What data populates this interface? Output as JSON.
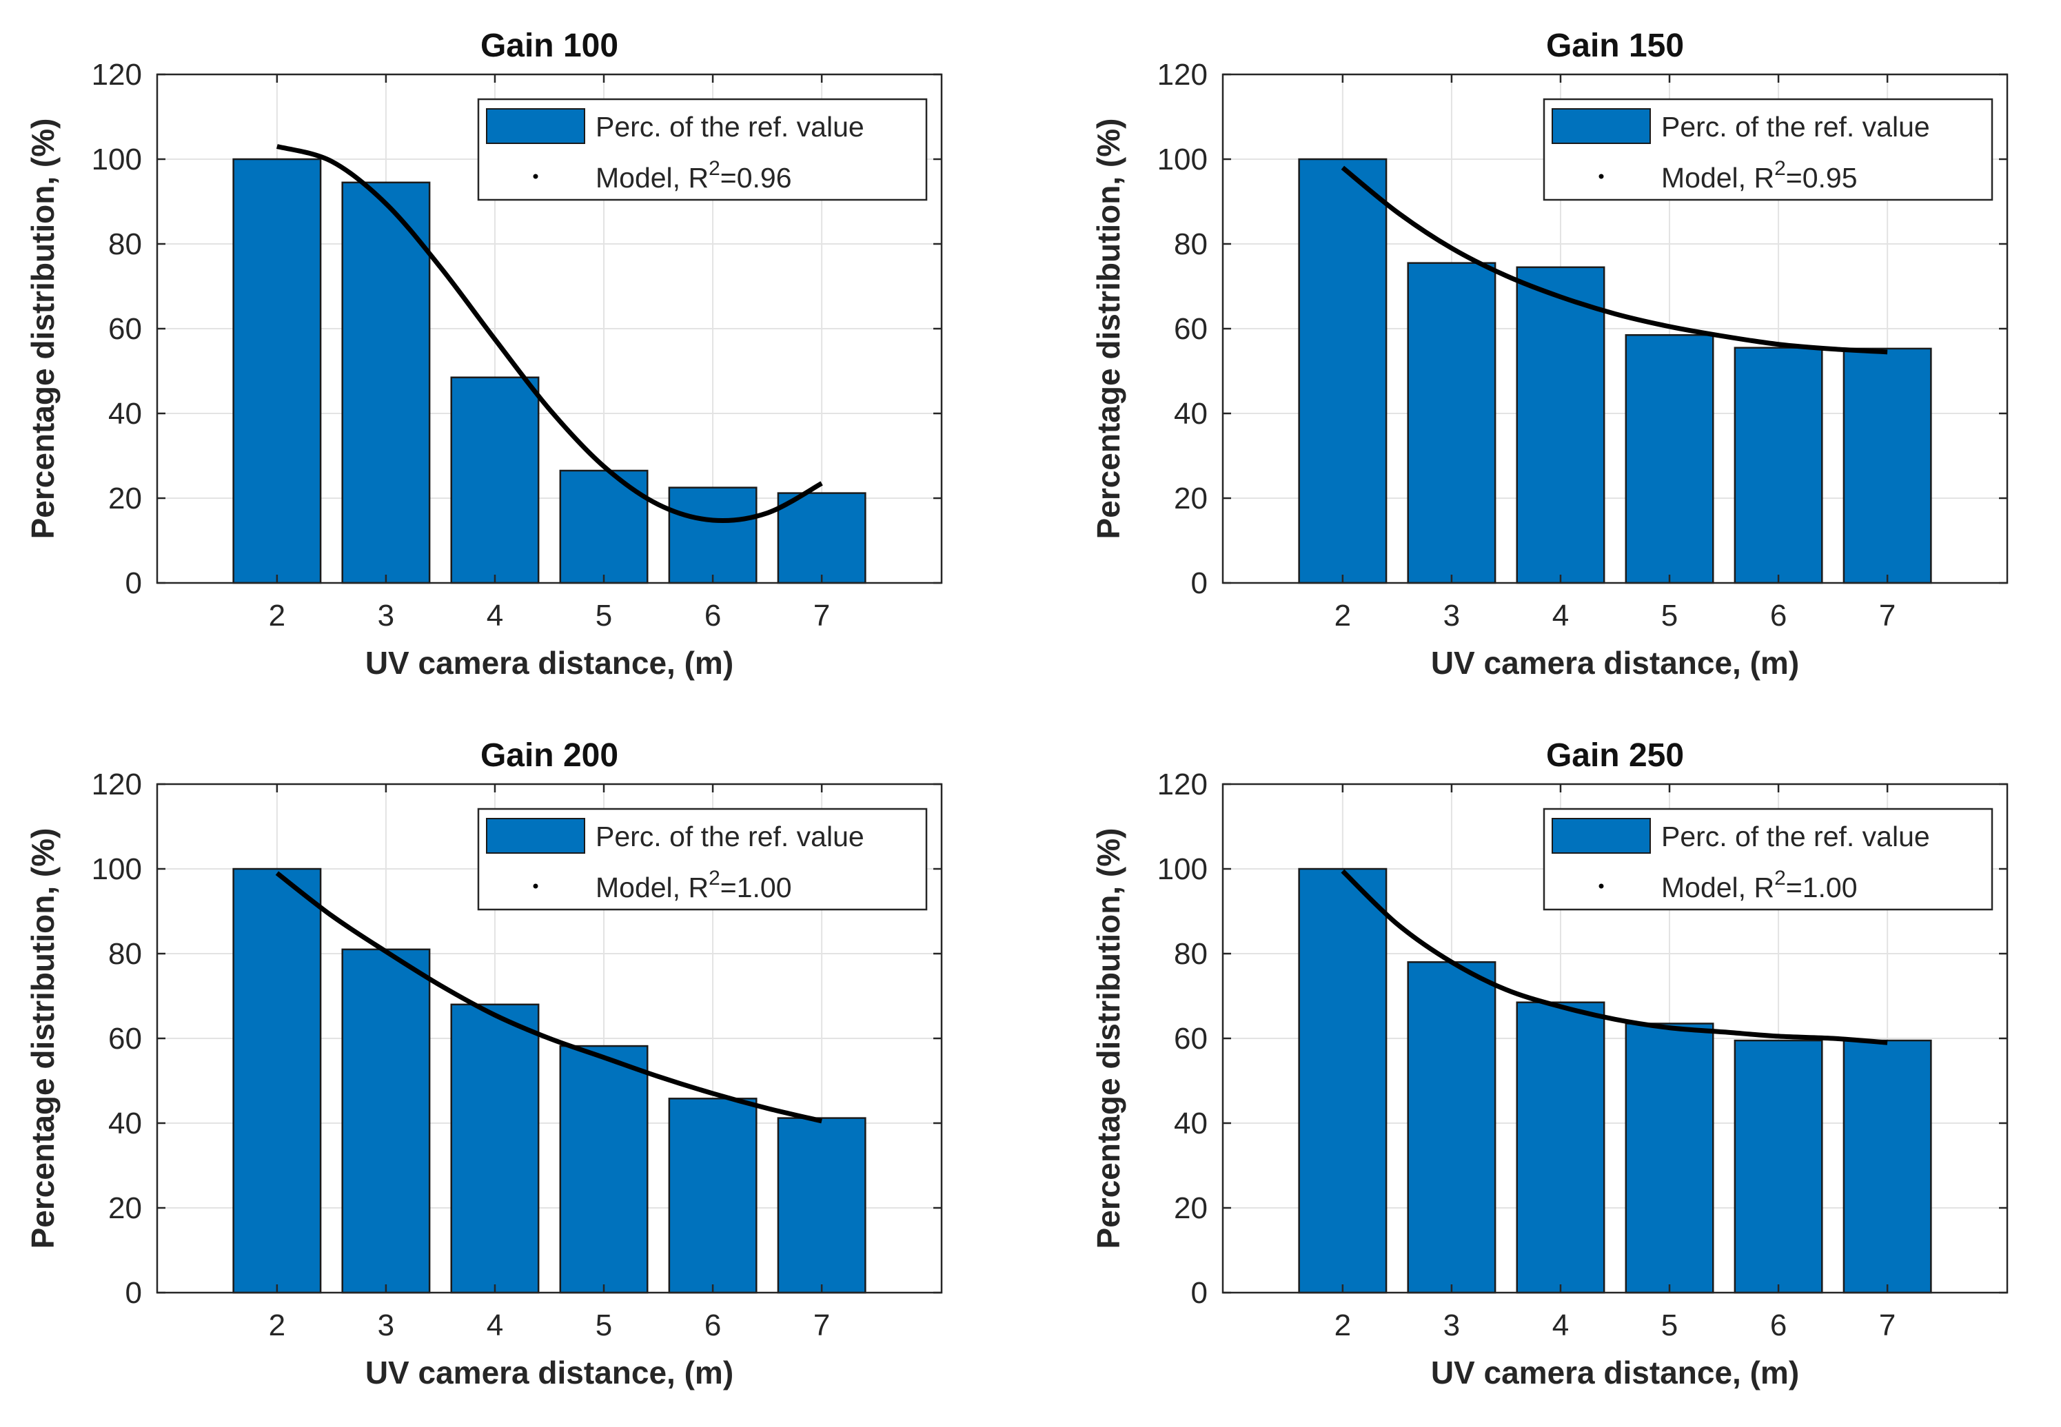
{
  "colors": {
    "bar_fill": "#0072BD",
    "model_line": "#000000",
    "grid": "#e3e3e3",
    "axis": "#262626"
  },
  "chart_data": [
    {
      "type": "bar",
      "title": "Gain 100",
      "xlabel": "UV camera distance, (m)",
      "ylabel": "Percentage distribution, (%)",
      "categories": [
        "2",
        "3",
        "4",
        "5",
        "6",
        "7"
      ],
      "x": [
        2,
        3,
        4,
        5,
        6,
        7
      ],
      "xlim": [
        0.9,
        8.1
      ],
      "ylim": [
        0,
        120
      ],
      "yticks": [
        "0",
        "20",
        "40",
        "60",
        "80",
        "100",
        "120"
      ],
      "grid": true,
      "legend": {
        "position": "top-right",
        "bar_label": "Perc. of the ref. value",
        "model_label": "Model, R",
        "model_sup": "2",
        "model_value": "=0.96"
      },
      "series": [
        {
          "name": "Perc. of the ref. value",
          "values": [
            100,
            94.5,
            48.5,
            26.5,
            22.5,
            21.2
          ]
        },
        {
          "name": "Model",
          "kind": "line",
          "x": [
            2,
            2.5,
            3,
            3.5,
            4,
            4.5,
            5,
            5.5,
            6,
            6.5,
            7
          ],
          "values": [
            103,
            99.5,
            89.5,
            74.5,
            57.5,
            41,
            27.5,
            18.5,
            14.8,
            16.5,
            23.5
          ]
        }
      ]
    },
    {
      "type": "bar",
      "title": "Gain 150",
      "xlabel": "UV camera distance, (m)",
      "ylabel": "Percentage distribution, (%)",
      "categories": [
        "2",
        "3",
        "4",
        "5",
        "6",
        "7"
      ],
      "x": [
        2,
        3,
        4,
        5,
        6,
        7
      ],
      "xlim": [
        0.9,
        8.1
      ],
      "ylim": [
        0,
        120
      ],
      "yticks": [
        "0",
        "20",
        "40",
        "60",
        "80",
        "100",
        "120"
      ],
      "grid": true,
      "legend": {
        "position": "top-right",
        "bar_label": "Perc. of the ref. value",
        "model_label": "Model, R",
        "model_sup": "2",
        "model_value": "=0.95"
      },
      "series": [
        {
          "name": "Perc. of the ref. value",
          "values": [
            100,
            75.5,
            74.5,
            58.5,
            55.5,
            55.3
          ]
        },
        {
          "name": "Model",
          "kind": "line",
          "x": [
            2,
            2.5,
            3,
            3.5,
            4,
            4.5,
            5,
            5.5,
            6,
            6.5,
            7
          ],
          "values": [
            98,
            87.5,
            79,
            72.5,
            67.5,
            63.5,
            60.5,
            58.2,
            56.3,
            55.2,
            54.5
          ]
        }
      ]
    },
    {
      "type": "bar",
      "title": "Gain 200",
      "xlabel": "UV camera distance, (m)",
      "ylabel": "Percentage distribution, (%)",
      "categories": [
        "2",
        "3",
        "4",
        "5",
        "6",
        "7"
      ],
      "x": [
        2,
        3,
        4,
        5,
        6,
        7
      ],
      "xlim": [
        0.9,
        8.1
      ],
      "ylim": [
        0,
        120
      ],
      "yticks": [
        "0",
        "20",
        "40",
        "60",
        "80",
        "100",
        "120"
      ],
      "grid": true,
      "legend": {
        "position": "top-right",
        "bar_label": "Perc. of the ref. value",
        "model_label": "Model, R",
        "model_sup": "2",
        "model_value": "=1.00"
      },
      "series": [
        {
          "name": "Perc. of the ref. value",
          "values": [
            100,
            81,
            68,
            58.2,
            45.8,
            41.2
          ]
        },
        {
          "name": "Model",
          "kind": "line",
          "x": [
            2,
            2.5,
            3,
            3.5,
            4,
            4.5,
            5,
            5.5,
            6,
            6.5,
            7
          ],
          "values": [
            99,
            89,
            80.5,
            72.5,
            65.5,
            60,
            55.5,
            51,
            47,
            43.5,
            40.5
          ]
        }
      ]
    },
    {
      "type": "bar",
      "title": "Gain 250",
      "xlabel": "UV camera distance, (m)",
      "ylabel": "Percentage distribution, (%)",
      "categories": [
        "2",
        "3",
        "4",
        "5",
        "6",
        "7"
      ],
      "x": [
        2,
        3,
        4,
        5,
        6,
        7
      ],
      "xlim": [
        0.9,
        8.1
      ],
      "ylim": [
        0,
        120
      ],
      "yticks": [
        "0",
        "20",
        "40",
        "60",
        "80",
        "100",
        "120"
      ],
      "grid": true,
      "legend": {
        "position": "top-right",
        "bar_label": "Perc. of the ref. value",
        "model_label": "Model, R",
        "model_sup": "2",
        "model_value": "=1.00"
      },
      "series": [
        {
          "name": "Perc. of the ref. value",
          "values": [
            100,
            78,
            68.5,
            63.5,
            59.5,
            59.5
          ]
        },
        {
          "name": "Model",
          "kind": "line",
          "x": [
            2,
            2.5,
            3,
            3.5,
            4,
            4.5,
            5,
            5.5,
            6,
            6.5,
            7
          ],
          "values": [
            99.5,
            87,
            78,
            71.5,
            67.5,
            64.5,
            62.5,
            61.5,
            60.5,
            60,
            59
          ]
        }
      ]
    }
  ]
}
